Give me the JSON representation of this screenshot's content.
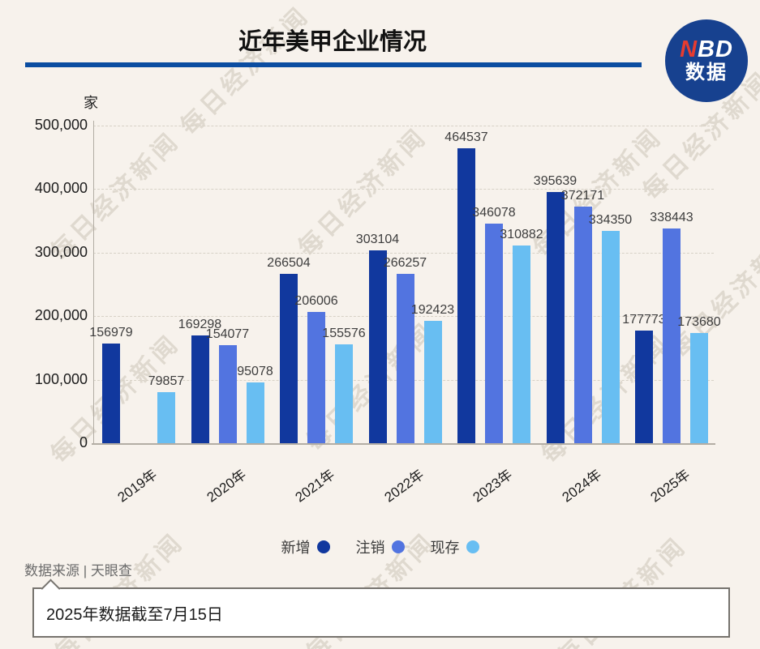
{
  "page": {
    "background": "#f7f2ec"
  },
  "header": {
    "title": "近年美甲企业情况",
    "divider_color": "#0b4da1"
  },
  "logo": {
    "line1_accent": "N",
    "line1_rest": "BD",
    "line2": "数据",
    "bg_color": "#17418f",
    "accent_color": "#e63c30"
  },
  "watermark": {
    "text": "每日经济新闻"
  },
  "chart_data": {
    "type": "bar",
    "title": "近年美甲企业情况",
    "unit_label": "家",
    "categories": [
      "2019年",
      "2020年",
      "2021年",
      "2022年",
      "2023年",
      "2024年",
      "2025年"
    ],
    "series": [
      {
        "name": "新增",
        "color": "#11389e",
        "values": [
          156979,
          169298,
          266504,
          303104,
          464537,
          395639,
          177773
        ]
      },
      {
        "name": "注销",
        "color": "#5274e0",
        "values": [
          null,
          154077,
          206006,
          266257,
          346078,
          372171,
          338443
        ]
      },
      {
        "name": "现存",
        "color": "#68bef2",
        "values": [
          79857,
          95078,
          155576,
          192423,
          310882,
          334350,
          173680
        ]
      }
    ],
    "ylim": [
      0,
      500000
    ],
    "yticks": [
      "500,000",
      "400,000",
      "300,000",
      "200,000",
      "100,000",
      "0"
    ],
    "grid": "horizontal-dashed",
    "legend_position": "bottom"
  },
  "footer": {
    "source": "数据来源 | 天眼查",
    "note": "2025年数据截至7月15日"
  }
}
